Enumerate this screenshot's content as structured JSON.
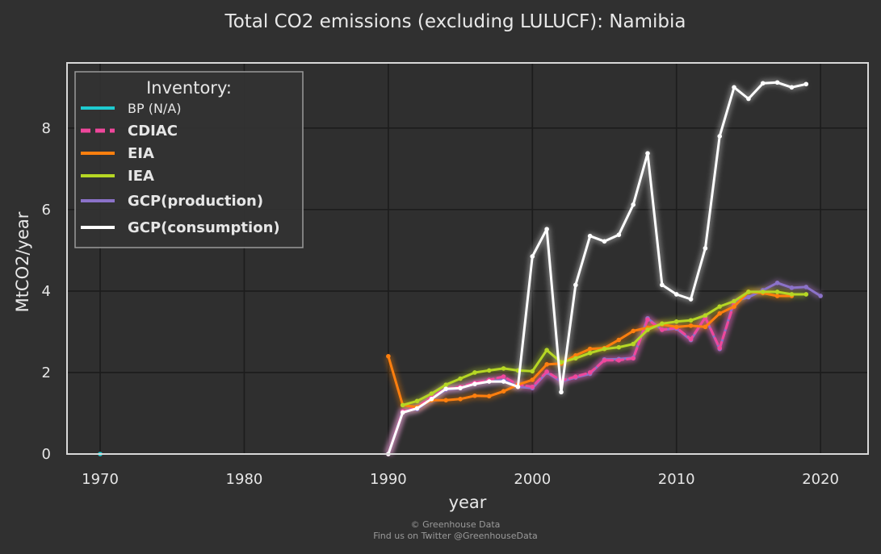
{
  "chart_data": {
    "type": "line",
    "title": "Total CO2 emissions (excluding LULUCF): Namibia",
    "xlabel": "year",
    "ylabel": "MtCO2/year",
    "xlim": [
      1967.7,
      2023.3
    ],
    "ylim": [
      0,
      9.6
    ],
    "xticks": [
      1970,
      1980,
      1990,
      2000,
      2010,
      2020
    ],
    "yticks": [
      0,
      2,
      4,
      6,
      8
    ],
    "grid": true,
    "legend": {
      "title": "Inventory:",
      "placement": "top-left"
    },
    "series": [
      {
        "name": "GCP(production)",
        "color": "#8b72c9",
        "glow": "#c080e0",
        "x": [
          1990,
          1991,
          1992,
          1993,
          1994,
          1995,
          1996,
          1997,
          1998,
          1999,
          2000,
          2001,
          2002,
          2003,
          2004,
          2005,
          2006,
          2007,
          2008,
          2009,
          2010,
          2011,
          2012,
          2013,
          2014,
          2015,
          2016,
          2017,
          2018,
          2019,
          2020
        ],
        "y": [
          0.0,
          1.05,
          1.1,
          1.35,
          1.58,
          1.62,
          1.72,
          1.78,
          1.82,
          1.65,
          1.62,
          2.0,
          1.78,
          1.88,
          1.97,
          2.32,
          2.33,
          2.36,
          3.33,
          3.05,
          3.08,
          2.8,
          3.35,
          2.58,
          3.75,
          3.85,
          4.02,
          4.2,
          4.08,
          4.1,
          3.88
        ]
      },
      {
        "name": "CDIAC",
        "color": "#f0479c",
        "glow": "#f0479c",
        "dashed": true,
        "x": [
          1990,
          1991,
          1992,
          1993,
          1994,
          1995,
          1996,
          1997,
          1998,
          1999,
          2000,
          2001,
          2002,
          2003,
          2004,
          2005,
          2006,
          2007,
          2008,
          2009,
          2010,
          2011,
          2012,
          2013,
          2014
        ],
        "y": [
          0.0,
          1.05,
          1.15,
          1.4,
          1.6,
          1.65,
          1.75,
          1.82,
          1.9,
          1.7,
          1.65,
          2.02,
          1.8,
          1.9,
          2.0,
          2.3,
          2.3,
          2.35,
          3.3,
          3.05,
          3.1,
          2.82,
          3.35,
          2.6,
          3.7
        ]
      },
      {
        "name": "EIA",
        "color": "#ff7f0e",
        "glow": "#ff7f0e",
        "x": [
          1990,
          1991,
          1992,
          1993,
          1994,
          1995,
          1996,
          1997,
          1998,
          1999,
          2000,
          2001,
          2002,
          2003,
          2004,
          2005,
          2006,
          2007,
          2008,
          2009,
          2010,
          2011,
          2012,
          2013,
          2014,
          2015,
          2016,
          2017,
          2018
        ],
        "y": [
          2.4,
          1.2,
          1.15,
          1.32,
          1.32,
          1.35,
          1.43,
          1.42,
          1.54,
          1.7,
          1.82,
          2.2,
          2.22,
          2.42,
          2.58,
          2.6,
          2.8,
          3.02,
          3.1,
          3.18,
          3.12,
          3.15,
          3.12,
          3.45,
          3.62,
          3.98,
          3.95,
          3.88,
          3.88
        ]
      },
      {
        "name": "IEA",
        "color": "#b6d724",
        "glow": "#b6d724",
        "x": [
          1991,
          1992,
          1993,
          1994,
          1995,
          1996,
          1997,
          1998,
          1999,
          2000,
          2001,
          2002,
          2003,
          2004,
          2005,
          2006,
          2007,
          2008,
          2009,
          2010,
          2011,
          2012,
          2013,
          2014,
          2015,
          2016,
          2017,
          2018,
          2019
        ],
        "y": [
          1.2,
          1.3,
          1.48,
          1.7,
          1.85,
          2.0,
          2.05,
          2.1,
          2.05,
          2.03,
          2.55,
          2.25,
          2.35,
          2.48,
          2.58,
          2.62,
          2.7,
          3.05,
          3.2,
          3.25,
          3.28,
          3.4,
          3.62,
          3.75,
          3.98,
          3.98,
          3.98,
          3.92,
          3.92
        ]
      },
      {
        "name": "GCP(consumption)",
        "color": "#ffffff",
        "glow": "#e0e0e0",
        "x": [
          1990,
          1991,
          1992,
          1993,
          1994,
          1995,
          1996,
          1997,
          1998,
          1999,
          2000,
          2001,
          2002,
          2003,
          2004,
          2005,
          2006,
          2007,
          2008,
          2009,
          2010,
          2011,
          2012,
          2013,
          2014,
          2015,
          2016,
          2017,
          2018,
          2019
        ],
        "y": [
          0.0,
          1.02,
          1.12,
          1.35,
          1.6,
          1.62,
          1.72,
          1.78,
          1.78,
          1.65,
          4.85,
          5.52,
          1.52,
          4.15,
          5.35,
          5.22,
          5.38,
          6.12,
          7.38,
          4.15,
          3.92,
          3.8,
          5.05,
          7.8,
          9.0,
          8.72,
          9.1,
          9.12,
          9.0,
          9.08
        ]
      },
      {
        "name": "BP (N/A)",
        "color": "#1ecbd0",
        "glow": "#1ecbd0",
        "x": [
          1970
        ],
        "y": [
          0.0
        ]
      }
    ],
    "legend_order": [
      "BP (N/A)",
      "CDIAC",
      "EIA",
      "IEA",
      "GCP(production)",
      "GCP(consumption)"
    ]
  },
  "footer": {
    "line1": "© Greenhouse Data",
    "line2": "Find us on Twitter @GreenhouseData"
  }
}
